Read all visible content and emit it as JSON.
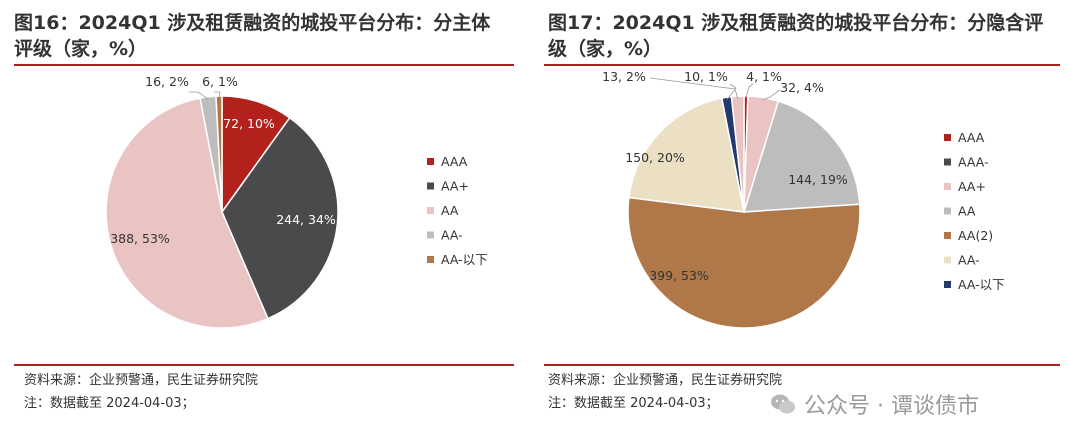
{
  "left": {
    "title": "图16：2024Q1  涉及租赁融资的城投平台分布：分主体评级（家，%）",
    "source": "资料来源：企业预警通，民生证券研究院",
    "note": "注：数据截至 2024-04-03；"
  },
  "right": {
    "title": "图17：2024Q1  涉及租赁融资的城投平台分布：分隐含评级（家，%）",
    "source": "资料来源：企业预警通，民生证券研究院",
    "note": "注：数据截至 2024-04-03；"
  },
  "watermark": "公众号 · 谭谈债市",
  "chart_data": [
    {
      "type": "pie",
      "title": "图16：2024Q1  涉及租赁融资的城投平台分布：分主体评级（家，%）",
      "legend_position": "right",
      "slices": [
        {
          "label": "AAA",
          "value": 72,
          "percent": 10,
          "data_label": "72, 10%",
          "color": "#b3211d"
        },
        {
          "label": "AA+",
          "value": 244,
          "percent": 34,
          "data_label": "244, 34%",
          "color": "#4a4a4c"
        },
        {
          "label": "AA",
          "value": 388,
          "percent": 53,
          "data_label": "388, 53%",
          "color": "#e9c4c3"
        },
        {
          "label": "AA-",
          "value": 16,
          "percent": 2,
          "data_label": "16, 2%",
          "color": "#bdbdbd"
        },
        {
          "label": "AA-以下",
          "value": 6,
          "percent": 1,
          "data_label": "6, 1%",
          "color": "#b07848"
        }
      ]
    },
    {
      "type": "pie",
      "title": "图17：2024Q1  涉及租赁融资的城投平台分布：分隐含评级（家，%）",
      "legend_position": "right",
      "slices": [
        {
          "label": "AAA",
          "value": 4,
          "percent": 1,
          "data_label": "4, 1%",
          "color": "#b3211d"
        },
        {
          "label": "AAA-",
          "value": 0,
          "percent": 0,
          "data_label": "",
          "color": "#4a4a4c"
        },
        {
          "label": "AA+",
          "value": 32,
          "percent": 4,
          "data_label": "32, 4%",
          "color": "#e9c4c3"
        },
        {
          "label": "AA",
          "value": 144,
          "percent": 19,
          "data_label": "144, 19%",
          "color": "#bdbdbd"
        },
        {
          "label": "AA(2)",
          "value": 399,
          "percent": 53,
          "data_label": "399, 53%",
          "color": "#b07848"
        },
        {
          "label": "AA-",
          "value": 150,
          "percent": 20,
          "data_label": "150, 20%",
          "color": "#ece0c4"
        },
        {
          "label": "AA-以下",
          "value": 10,
          "percent": 1,
          "data_label": "10, 1%",
          "color": "#243a6e"
        },
        {
          "label": "",
          "value": 13,
          "percent": 2,
          "data_label": "13, 2%",
          "color": "#e9c4c3"
        }
      ]
    }
  ]
}
